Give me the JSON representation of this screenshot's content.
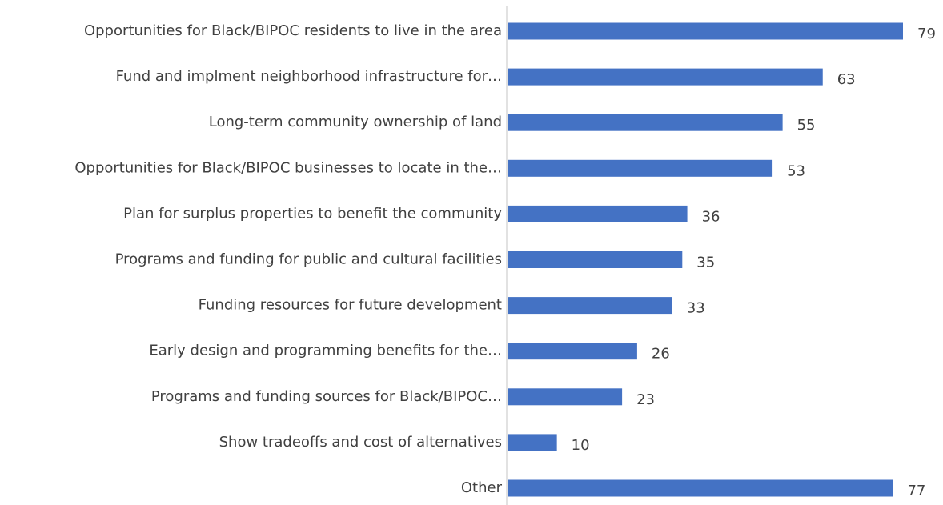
{
  "colors": {
    "bar": "#4472c4",
    "text": "#404040",
    "axis": "#d9d9d9",
    "background": "#ffffff"
  },
  "chart_data": {
    "type": "bar",
    "orientation": "horizontal",
    "categories": [
      "Opportunities for Black/BIPOC residents to live in the area",
      "Fund and implment neighborhood infrastructure for…",
      "Long-term community ownership of land",
      "Opportunities for Black/BIPOC businesses to locate in the…",
      "Plan for surplus properties to benefit the community",
      "Programs and funding for public and cultural facilities",
      "Funding resources for future development",
      "Early design and programming benefits for the…",
      "Programs and funding sources for Black/BIPOC…",
      "Show tradeoffs and cost of alternatives",
      "Other"
    ],
    "values": [
      79,
      63,
      55,
      53,
      36,
      35,
      33,
      26,
      23,
      10,
      77
    ],
    "xlim": [
      0,
      79
    ],
    "data_labels": true,
    "grid": false,
    "legend": "none"
  }
}
